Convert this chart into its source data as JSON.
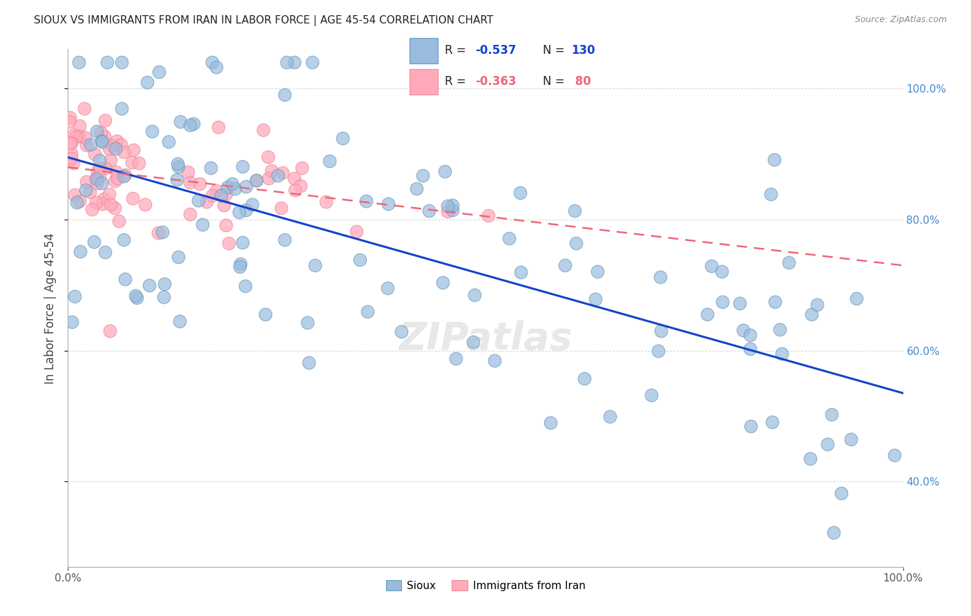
{
  "title": "SIOUX VS IMMIGRANTS FROM IRAN IN LABOR FORCE | AGE 45-54 CORRELATION CHART",
  "source": "Source: ZipAtlas.com",
  "ylabel": "In Labor Force | Age 45-54",
  "ytick_labels": [
    "40.0%",
    "60.0%",
    "80.0%",
    "100.0%"
  ],
  "ytick_values": [
    0.4,
    0.6,
    0.8,
    1.0
  ],
  "xlim": [
    0.0,
    1.0
  ],
  "ylim": [
    0.27,
    1.06
  ],
  "blue_R": -0.537,
  "blue_N": 130,
  "pink_R": -0.363,
  "pink_N": 80,
  "blue_color": "#99BBDD",
  "pink_color": "#FFAABB",
  "blue_edge_color": "#6699BB",
  "pink_edge_color": "#EE8899",
  "blue_line_color": "#1144CC",
  "pink_line_color": "#EE6677",
  "watermark": "ZIPatlas",
  "background_color": "#FFFFFF",
  "grid_color": "#CCCCCC",
  "blue_line_y0": 0.895,
  "blue_line_y1": 0.535,
  "pink_line_y0": 0.88,
  "pink_line_y1": 0.73,
  "legend_R_color": "#111111",
  "legend_N_color_blue": "#1144CC",
  "legend_N_color_pink": "#EE6677"
}
